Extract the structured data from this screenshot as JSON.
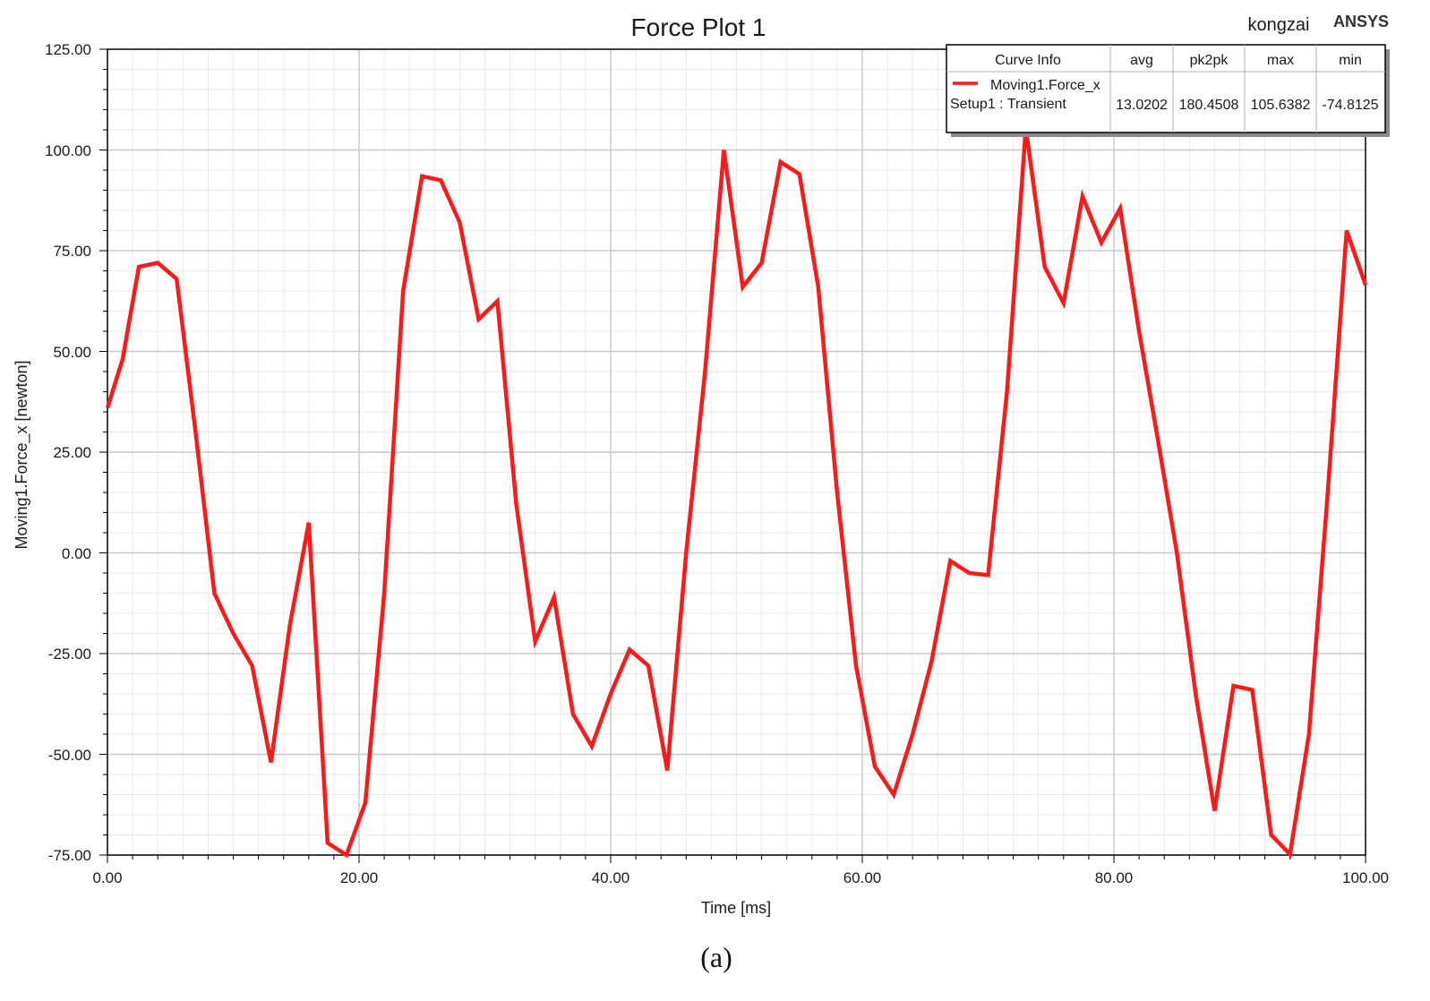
{
  "chart_data": {
    "type": "line",
    "title": "Force Plot 1",
    "xlabel": "Time [ms]",
    "ylabel": "Moving1.Force_x [newton]",
    "xlim": [
      0,
      100
    ],
    "ylim": [
      -75,
      125
    ],
    "x_ticks": [
      "0.00",
      "20.00",
      "40.00",
      "60.00",
      "80.00",
      "100.00"
    ],
    "y_ticks": [
      "125.00",
      "100.00",
      "75.00",
      "50.00",
      "25.00",
      "0.00",
      "-25.00",
      "-50.00",
      "-75.00"
    ],
    "grid": true,
    "legend_position": "top-right",
    "series": [
      {
        "name": "Moving1.Force_x",
        "color": "#ff1a1a",
        "points": [
          [
            0.0,
            36.0
          ],
          [
            1.2,
            48.0
          ],
          [
            2.5,
            71.0
          ],
          [
            4.0,
            72.0
          ],
          [
            5.5,
            68.0
          ],
          [
            7.0,
            30.0
          ],
          [
            8.5,
            -10.0
          ],
          [
            10.0,
            -20.0
          ],
          [
            11.5,
            -28.0
          ],
          [
            13.0,
            -52.0
          ],
          [
            14.5,
            -18.0
          ],
          [
            16.0,
            7.5
          ],
          [
            17.5,
            -72.0
          ],
          [
            19.0,
            -75.0
          ],
          [
            20.5,
            -62.0
          ],
          [
            22.0,
            -10.0
          ],
          [
            23.5,
            65.0
          ],
          [
            25.0,
            93.5
          ],
          [
            26.5,
            92.5
          ],
          [
            28.0,
            82.0
          ],
          [
            29.5,
            58.0
          ],
          [
            31.0,
            62.5
          ],
          [
            32.5,
            12.0
          ],
          [
            34.0,
            -22.0
          ],
          [
            35.5,
            -11.0
          ],
          [
            37.0,
            -40.0
          ],
          [
            38.5,
            -48.0
          ],
          [
            40.0,
            -35.0
          ],
          [
            41.5,
            -24.0
          ],
          [
            43.0,
            -28.0
          ],
          [
            44.5,
            -54.0
          ],
          [
            46.0,
            0.0
          ],
          [
            47.5,
            45.0
          ],
          [
            49.0,
            100.0
          ],
          [
            50.5,
            66.0
          ],
          [
            52.0,
            72.0
          ],
          [
            53.5,
            97.0
          ],
          [
            55.0,
            94.0
          ],
          [
            56.5,
            66.0
          ],
          [
            58.0,
            15.0
          ],
          [
            59.5,
            -28.0
          ],
          [
            61.0,
            -53.0
          ],
          [
            62.5,
            -60.0
          ],
          [
            64.0,
            -45.0
          ],
          [
            65.5,
            -27.0
          ],
          [
            67.0,
            -2.0
          ],
          [
            68.5,
            -5.0
          ],
          [
            70.0,
            -5.5
          ],
          [
            71.5,
            40.0
          ],
          [
            73.0,
            105.5
          ],
          [
            74.5,
            71.0
          ],
          [
            76.0,
            62.0
          ],
          [
            77.5,
            88.5
          ],
          [
            79.0,
            77.0
          ],
          [
            80.5,
            85.5
          ],
          [
            82.0,
            55.0
          ],
          [
            83.5,
            28.0
          ],
          [
            85.0,
            0.0
          ],
          [
            86.5,
            -35.0
          ],
          [
            88.0,
            -64.0
          ],
          [
            89.5,
            -33.0
          ],
          [
            91.0,
            -34.0
          ],
          [
            92.5,
            -70.0
          ],
          [
            94.0,
            -74.8
          ],
          [
            95.5,
            -45.0
          ],
          [
            97.0,
            15.0
          ],
          [
            98.5,
            80.0
          ],
          [
            100.0,
            66.5
          ]
        ]
      }
    ]
  },
  "legend": {
    "headers": [
      "Curve Info",
      "avg",
      "pk2pk",
      "max",
      "min"
    ],
    "curve_name": "Moving1.Force_x",
    "curve_setup": "Setup1 : Transient",
    "avg": "13.0202",
    "pk2pk": "180.4508",
    "max": "105.6382",
    "min": "-74.8125"
  },
  "corner": {
    "user": "kongzai",
    "brand": "ANSYS"
  },
  "caption": "(a)",
  "colors": {
    "curve": "#ff1a1a",
    "major_grid": "#c8c8c8",
    "minor_grid": "#ebebeb",
    "axis": "#000000"
  }
}
